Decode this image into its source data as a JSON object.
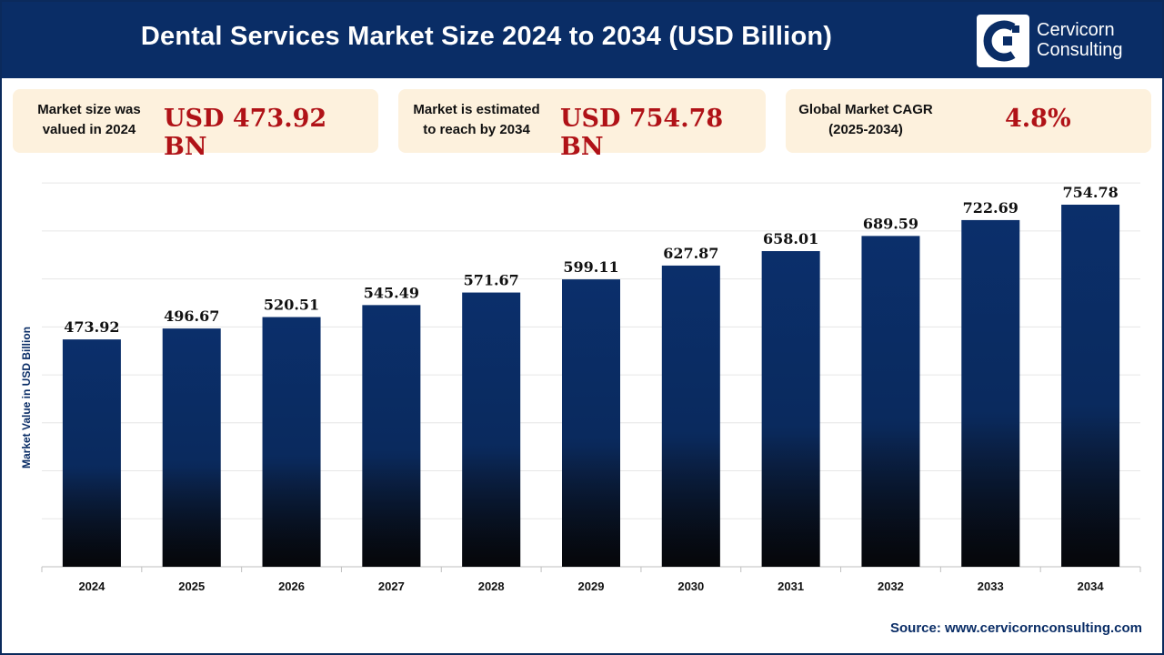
{
  "header": {
    "title": "Dental Services Market Size 2024 to 2034 (USD Billion)"
  },
  "logo": {
    "line1": "Cervicorn",
    "line2": "Consulting"
  },
  "cards": [
    {
      "label_line1": "Market size was",
      "label_line2": "valued in 2024",
      "value": "USD 473.92 BN"
    },
    {
      "label_line1": "Market is estimated",
      "label_line2": "to reach by 2034",
      "value": "USD 754.78 BN"
    },
    {
      "label_line1": "Global Market CAGR",
      "label_line2": "(2025-2034)",
      "value": "4.8%"
    }
  ],
  "source": "Source: www.cervicornconsulting.com",
  "colors": {
    "navy": "#0a2d66",
    "bar_top": "#0b2f6b",
    "bar_bottom": "#0c0f16",
    "accent_red": "#b01217",
    "card_bg": "#fdf1dd"
  },
  "chart_data": {
    "type": "bar",
    "title": "Dental Services Market Size 2024 to 2034 (USD Billion)",
    "xlabel": "",
    "ylabel": "Market Value in USD Billion",
    "categories": [
      "2024",
      "2025",
      "2026",
      "2027",
      "2028",
      "2029",
      "2030",
      "2031",
      "2032",
      "2033",
      "2034"
    ],
    "values": [
      473.92,
      496.67,
      520.51,
      545.49,
      571.67,
      599.11,
      627.87,
      658.01,
      689.59,
      722.69,
      754.78
    ],
    "value_labels": [
      "473.92",
      "496.67",
      "520.51",
      "545.49",
      "571.67",
      "599.11",
      "627.87",
      "658.01",
      "689.59",
      "722.69",
      "754.78"
    ],
    "ylim": [
      0,
      800
    ],
    "grid": true,
    "legend": "none"
  }
}
